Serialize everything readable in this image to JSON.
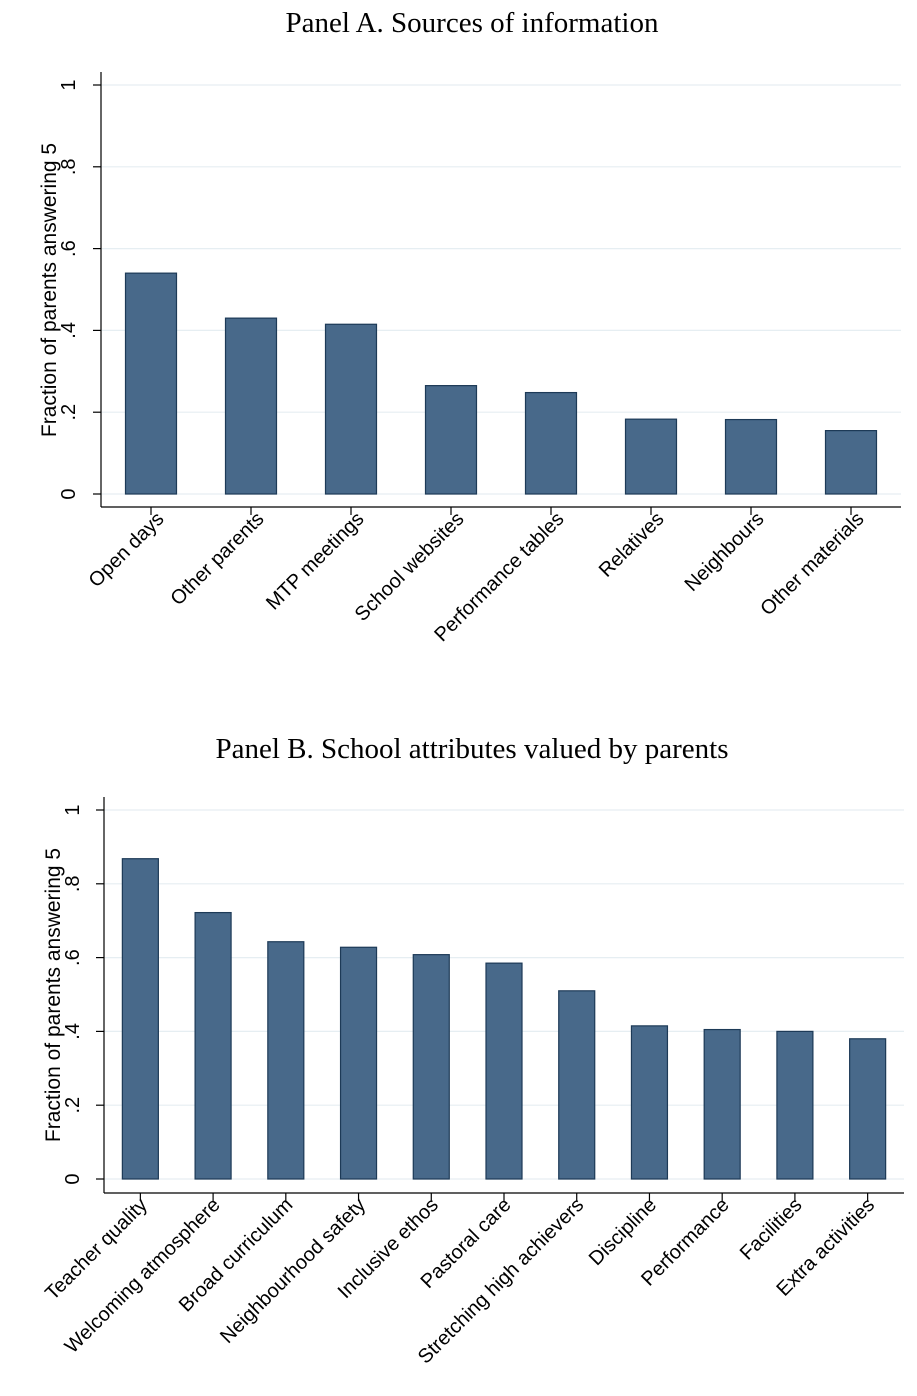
{
  "chart_data": [
    {
      "type": "bar",
      "title": "Panel A. Sources of information",
      "xlabel": "",
      "ylabel": "Fraction of parents answering 5",
      "ylim": [
        0,
        1
      ],
      "yticks": [
        "0",
        ".2",
        ".4",
        ".6",
        ".8",
        "1"
      ],
      "ytick_values": [
        0,
        0.2,
        0.4,
        0.6,
        0.8,
        1
      ],
      "grid": true,
      "color": "#48698a",
      "categories": [
        "Open days",
        "Other parents",
        "MTP meetings",
        "School websites",
        "Performance tables",
        "Relatives",
        "Neighbours",
        "Other materials"
      ],
      "values": [
        0.54,
        0.43,
        0.415,
        0.265,
        0.248,
        0.183,
        0.182,
        0.155
      ]
    },
    {
      "type": "bar",
      "title": "Panel B. School attributes valued by parents",
      "xlabel": "",
      "ylabel": "Fraction of parents answering 5",
      "ylim": [
        0,
        1
      ],
      "yticks": [
        "0",
        ".2",
        ".4",
        ".6",
        ".8",
        "1"
      ],
      "ytick_values": [
        0,
        0.2,
        0.4,
        0.6,
        0.8,
        1
      ],
      "grid": true,
      "color": "#48698a",
      "categories": [
        "Teacher quality",
        "Welcoming atmosphere",
        "Broad curriculum",
        "Neighbourhood safety",
        "Inclusive ethos",
        "Pastoral care",
        "Stretching high achievers",
        "Discipline",
        "Performance",
        "Facilities",
        "Extra activities"
      ],
      "values": [
        0.868,
        0.722,
        0.643,
        0.628,
        0.608,
        0.585,
        0.51,
        0.415,
        0.405,
        0.4,
        0.38
      ]
    }
  ]
}
